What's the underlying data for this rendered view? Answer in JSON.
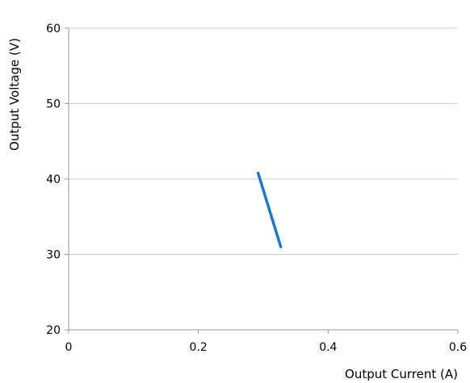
{
  "chart_data": {
    "type": "line",
    "title": "",
    "xlabel": "Output Current (A)",
    "ylabel": "Output Voltage (V)",
    "xlim": [
      0,
      0.6
    ],
    "ylim": [
      20,
      60
    ],
    "xticks": [
      0,
      0.2,
      0.4,
      0.6
    ],
    "xtick_labels": [
      "0",
      "0.2",
      "0.4",
      "0.6"
    ],
    "yticks": [
      20,
      30,
      40,
      50,
      60
    ],
    "ytick_labels": [
      "20",
      "30",
      "40",
      "50",
      "60"
    ],
    "grid": "horizontal",
    "series": [
      {
        "color": "#1f77c8",
        "x": [
          0.292,
          0.327
        ],
        "y": [
          40.8,
          31.0
        ]
      }
    ]
  }
}
